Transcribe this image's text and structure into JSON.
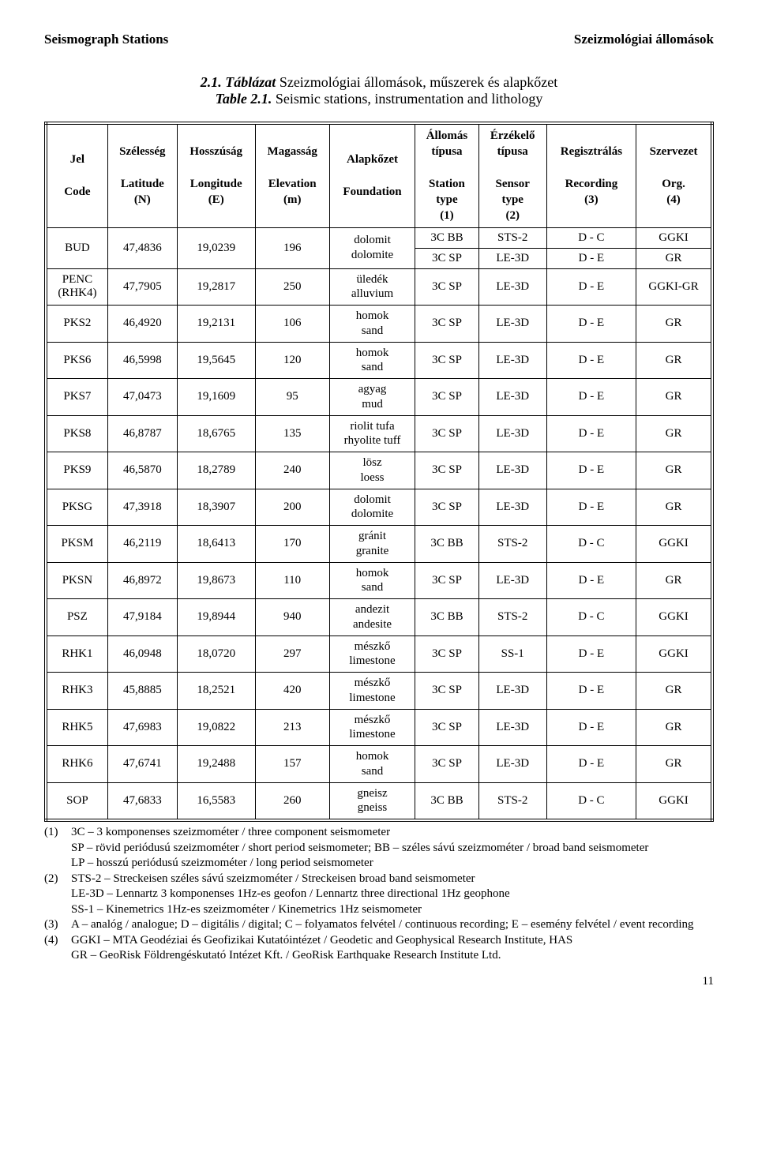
{
  "header": {
    "left": "Seismograph Stations",
    "right": "Szeizmológiai állomások"
  },
  "caption": {
    "l1_bold": "2.1. Táblázat",
    "l1_rest": "  Szeizmológiai állomások, műszerek és alapkőzet",
    "l2_bold": "Table 2.1.",
    "l2_rest": "  Seismic stations, instrumentation and lithology"
  },
  "columns": {
    "c0_a": "Jel",
    "c0_b": "Code",
    "c1_a": "Szélesség",
    "c1_b": "Latitude",
    "c1_c": "(N)",
    "c2_a": "Hosszúság",
    "c2_b": "Longitude",
    "c2_c": "(E)",
    "c3_a": "Magasság",
    "c3_b": "Elevation",
    "c3_c": "(m)",
    "c4_a": "Alapkőzet",
    "c4_b": "Foundation",
    "c5_a": "Állomás",
    "c5_b": "típusa",
    "c5_c": "Station",
    "c5_d": "type",
    "c5_e": "(1)",
    "c6_a": "Érzékelő",
    "c6_b": "típusa",
    "c6_c": "Sensor",
    "c6_d": "type",
    "c6_e": "(2)",
    "c7_a": "Regisztrálás",
    "c7_b": "Recording",
    "c7_c": "(3)",
    "c8_a": "Szervezet",
    "c8_b": "Org.",
    "c8_c": "(4)"
  },
  "rows": [
    {
      "code": "BUD",
      "rhk": "",
      "lat": "47,4836",
      "lon": "19,0239",
      "elev": "196",
      "found_hu": "dolomit",
      "found_en": "dolomite",
      "dual": true,
      "st1": "3C BB",
      "se1": "STS-2",
      "re1": "D - C",
      "or1": "GGKI",
      "st2": "3C SP",
      "se2": "LE-3D",
      "re2": "D - E",
      "or2": "GR"
    },
    {
      "code": "PENC",
      "rhk": "(RHK4)",
      "lat": "47,7905",
      "lon": "19,2817",
      "elev": "250",
      "found_hu": "üledék",
      "found_en": "alluvium",
      "st": "3C SP",
      "se": "LE-3D",
      "re": "D - E",
      "or": "GGKI-GR"
    },
    {
      "code": "PKS2",
      "lat": "46,4920",
      "lon": "19,2131",
      "elev": "106",
      "found_hu": "homok",
      "found_en": "sand",
      "st": "3C SP",
      "se": "LE-3D",
      "re": "D - E",
      "or": "GR"
    },
    {
      "code": "PKS6",
      "lat": "46,5998",
      "lon": "19,5645",
      "elev": "120",
      "found_hu": "homok",
      "found_en": "sand",
      "st": "3C SP",
      "se": "LE-3D",
      "re": "D - E",
      "or": "GR"
    },
    {
      "code": "PKS7",
      "lat": "47,0473",
      "lon": "19,1609",
      "elev": "95",
      "found_hu": "agyag",
      "found_en": "mud",
      "st": "3C SP",
      "se": "LE-3D",
      "re": "D - E",
      "or": "GR"
    },
    {
      "code": "PKS8",
      "lat": "46,8787",
      "lon": "18,6765",
      "elev": "135",
      "found_hu": "riolit tufa",
      "found_en": "rhyolite tuff",
      "st": "3C SP",
      "se": "LE-3D",
      "re": "D - E",
      "or": "GR"
    },
    {
      "code": "PKS9",
      "lat": "46,5870",
      "lon": "18,2789",
      "elev": "240",
      "found_hu": "lösz",
      "found_en": "loess",
      "st": "3C SP",
      "se": "LE-3D",
      "re": "D - E",
      "or": "GR"
    },
    {
      "code": "PKSG",
      "lat": "47,3918",
      "lon": "18,3907",
      "elev": "200",
      "found_hu": "dolomit",
      "found_en": "dolomite",
      "st": "3C SP",
      "se": "LE-3D",
      "re": "D - E",
      "or": "GR"
    },
    {
      "code": "PKSM",
      "lat": "46,2119",
      "lon": "18,6413",
      "elev": "170",
      "found_hu": "gránit",
      "found_en": "granite",
      "st": "3C BB",
      "se": "STS-2",
      "re": "D - C",
      "or": "GGKI"
    },
    {
      "code": "PKSN",
      "lat": "46,8972",
      "lon": "19,8673",
      "elev": "110",
      "found_hu": "homok",
      "found_en": "sand",
      "st": "3C SP",
      "se": "LE-3D",
      "re": "D - E",
      "or": "GR"
    },
    {
      "code": "PSZ",
      "lat": "47,9184",
      "lon": "19,8944",
      "elev": "940",
      "found_hu": "andezit",
      "found_en": "andesite",
      "st": "3C BB",
      "se": "STS-2",
      "re": "D - C",
      "or": "GGKI"
    },
    {
      "code": "RHK1",
      "lat": "46,0948",
      "lon": "18,0720",
      "elev": "297",
      "found_hu": "mészkő",
      "found_en": "limestone",
      "st": "3C SP",
      "se": "SS-1",
      "re": "D - E",
      "or": "GGKI"
    },
    {
      "code": "RHK3",
      "lat": "45,8885",
      "lon": "18,2521",
      "elev": "420",
      "found_hu": "mészkő",
      "found_en": "limestone",
      "st": "3C SP",
      "se": "LE-3D",
      "re": "D - E",
      "or": "GR"
    },
    {
      "code": "RHK5",
      "lat": "47,6983",
      "lon": "19,0822",
      "elev": "213",
      "found_hu": "mészkő",
      "found_en": "limestone",
      "st": "3C SP",
      "se": "LE-3D",
      "re": "D - E",
      "or": "GR"
    },
    {
      "code": "RHK6",
      "lat": "47,6741",
      "lon": "19,2488",
      "elev": "157",
      "found_hu": "homok",
      "found_en": "sand",
      "st": "3C SP",
      "se": "LE-3D",
      "re": "D - E",
      "or": "GR"
    },
    {
      "code": "SOP",
      "lat": "47,6833",
      "lon": "16,5583",
      "elev": "260",
      "found_hu": "gneisz",
      "found_en": "gneiss",
      "st": "3C BB",
      "se": "STS-2",
      "re": "D - C",
      "or": "GGKI"
    }
  ],
  "notes": {
    "n1_tag": "(1)",
    "n1a": "3C – 3 komponenses szeizmométer / three component seismometer",
    "n1b": "SP – rövid periódusú szeizmométer / short period seismometer;   BB – széles sávú szeizmométer / broad band seismometer",
    "n1c": "LP – hosszú periódusú szeizmométer / long period seismometer",
    "n2_tag": "(2)",
    "n2a": "STS-2 – Streckeisen széles sávú szeizmométer / Streckeisen broad band seismometer",
    "n2b": "LE-3D – Lennartz 3 komponenses 1Hz-es geofon / Lennartz three directional 1Hz geophone",
    "n2c": "SS-1 – Kinemetrics 1Hz-es szeizmométer / Kinemetrics 1Hz seismometer",
    "n3_tag": "(3)",
    "n3a": "A – analóg / analogue; D – digitális / digital; C – folyamatos felvétel / continuous recording; E – esemény felvétel / event recording",
    "n4_tag": "(4)",
    "n4a": "GGKI – MTA Geodéziai és Geofizikai Kutatóintézet / Geodetic and Geophysical Research Institute, HAS",
    "n4b": "GR – GeoRisk Földrengéskutató Intézet Kft. / GeoRisk Earthquake Research Institute Ltd."
  },
  "page_number": "11"
}
